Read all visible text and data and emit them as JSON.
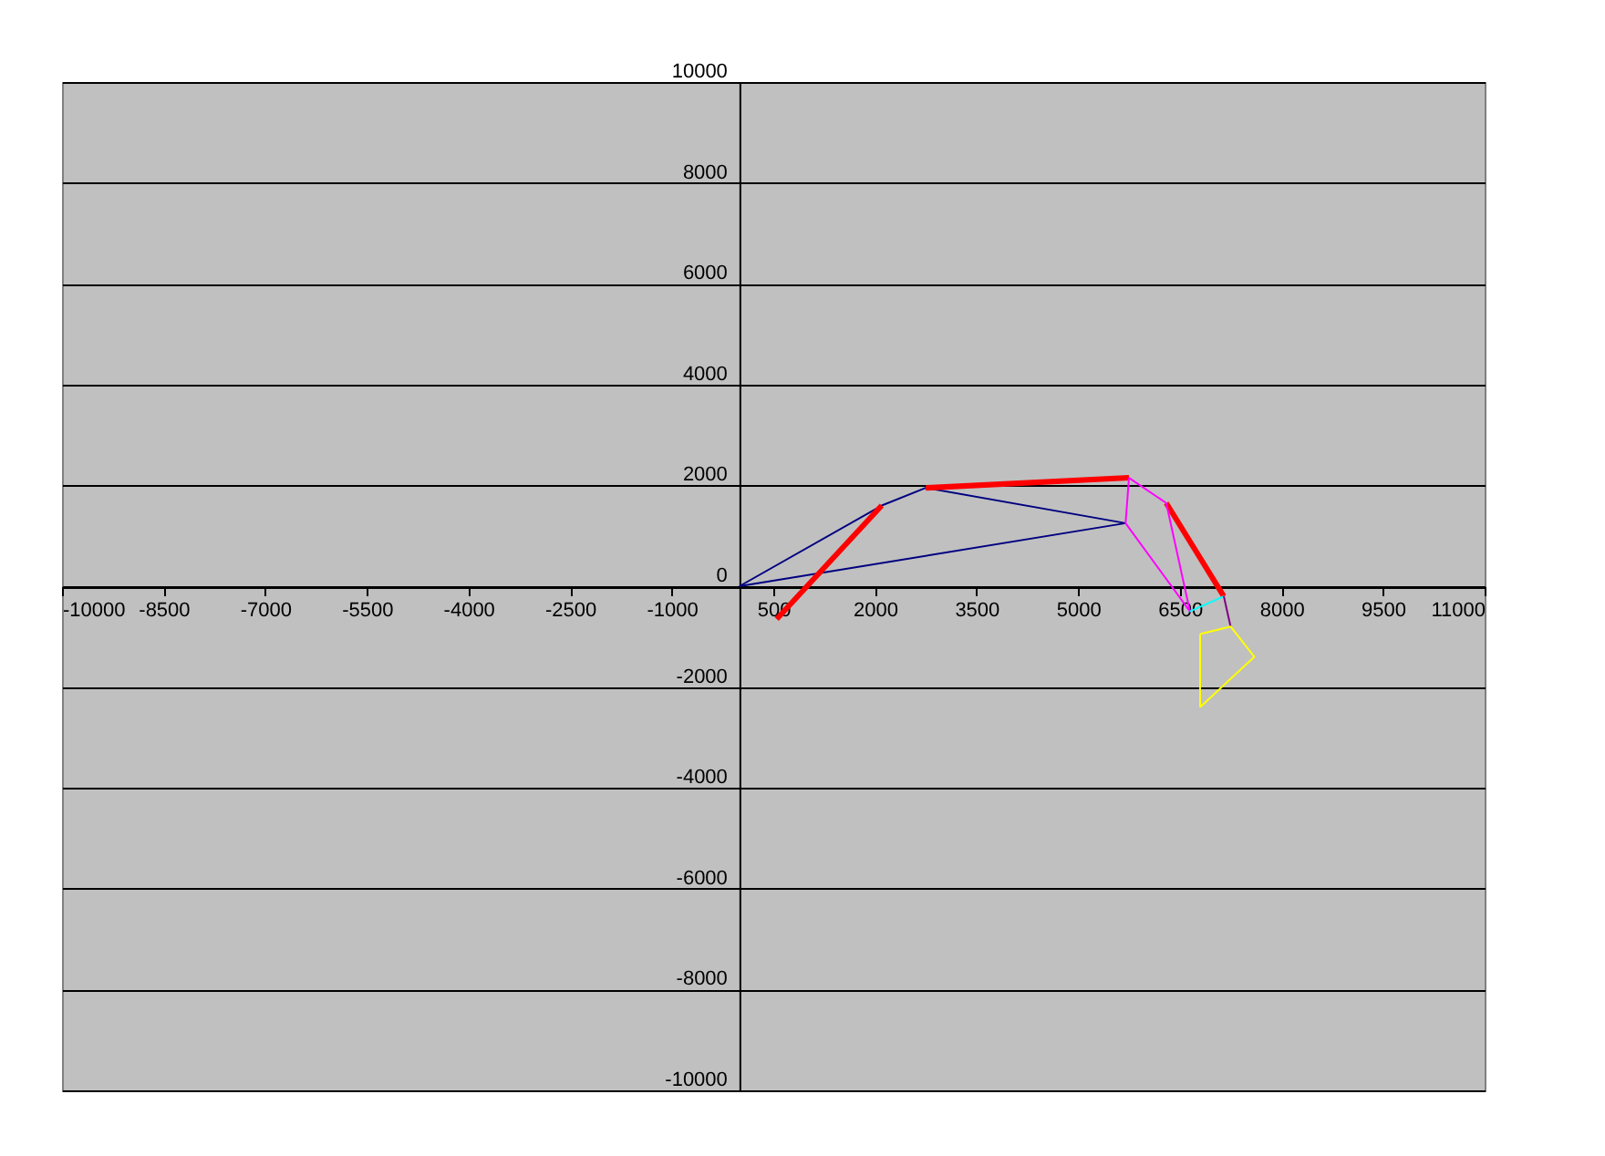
{
  "chart_data": {
    "type": "line",
    "xlim": [
      -10000,
      11000
    ],
    "ylim": [
      -10000,
      10000
    ],
    "xticks": [
      -10000,
      -8500,
      -7000,
      -5500,
      -4000,
      -2500,
      -1000,
      500,
      2000,
      3500,
      5000,
      6500,
      8000,
      9500,
      11000
    ],
    "yticks": [
      -10000,
      -8000,
      -6000,
      -4000,
      -2000,
      0,
      2000,
      4000,
      6000,
      8000,
      10000
    ],
    "grid": "y",
    "legend": false,
    "marker": "none",
    "line_style": "solid",
    "series": [
      {
        "color": "#000080",
        "x": [
          0,
          2100,
          2750,
          5700
        ],
        "values": [
          0,
          1600,
          1950,
          1250
        ]
      },
      {
        "color": "#000080",
        "x": [
          5700,
          0
        ],
        "values": [
          1250,
          0
        ]
      },
      {
        "color": "#ff0000",
        "x": [
          550,
          2100,
          null,
          2750,
          5750,
          null,
          6300,
          7150
        ],
        "values": [
          -650,
          1600,
          null,
          1950,
          2150,
          null,
          1650,
          -200
        ]
      },
      {
        "color": "#ff00ff",
        "x": [
          5750,
          5700,
          6650,
          6300
        ],
        "values": [
          2150,
          1250,
          -500,
          1650
        ]
      },
      {
        "color": "#ff00ff",
        "x": [
          6300,
          5750
        ],
        "values": [
          1650,
          2150
        ]
      },
      {
        "color": "#00ffff",
        "x": [
          6650,
          7150
        ],
        "values": [
          -500,
          -200
        ]
      },
      {
        "color": "#800080",
        "x": [
          7150,
          7250
        ],
        "values": [
          -200,
          -800
        ]
      },
      {
        "color": "#ffff00",
        "x": [
          6800,
          7250,
          7600,
          6800
        ],
        "values": [
          -950,
          -800,
          -1400,
          -2400
        ]
      },
      {
        "color": "#ffff00",
        "x": [
          6800,
          6800
        ],
        "values": [
          -2400,
          -950
        ]
      }
    ]
  }
}
